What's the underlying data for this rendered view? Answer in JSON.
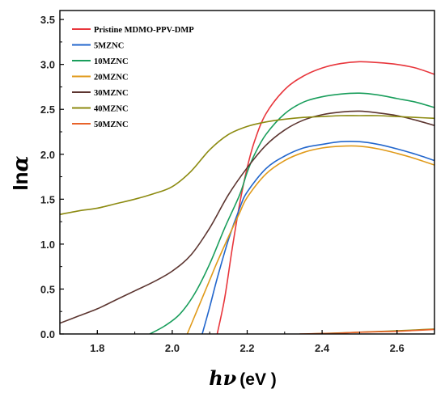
{
  "chart_data": {
    "type": "line",
    "xlabel_symbol": "hν",
    "xlabel_unit": "(eV  )",
    "ylabel_prefix": "In",
    "ylabel_symbol": "α",
    "xlim": [
      1.7,
      2.7
    ],
    "ylim": [
      0.0,
      3.6
    ],
    "xticks": [
      "1.8",
      "2.0",
      "2.2",
      "2.4",
      "2.6"
    ],
    "yticks": [
      "0.0",
      "0.5",
      "1.0",
      "1.5",
      "2.0",
      "2.5",
      "3.0",
      "3.5"
    ],
    "grid": false,
    "legend_position": "top-left",
    "series": [
      {
        "name": "Pristine MDMO-PPV-DMP",
        "color": "#e8363c",
        "x": [
          2.12,
          2.14,
          2.16,
          2.18,
          2.2,
          2.22,
          2.25,
          2.3,
          2.35,
          2.4,
          2.45,
          2.5,
          2.55,
          2.6,
          2.65,
          2.7
        ],
        "y": [
          0.0,
          0.4,
          0.95,
          1.45,
          1.85,
          2.15,
          2.45,
          2.72,
          2.87,
          2.96,
          3.01,
          3.03,
          3.02,
          3.0,
          2.96,
          2.89
        ]
      },
      {
        "name": "5MZNC",
        "color": "#2266cc",
        "x": [
          2.08,
          2.1,
          2.12,
          2.15,
          2.18,
          2.2,
          2.25,
          2.3,
          2.35,
          2.4,
          2.45,
          2.5,
          2.55,
          2.6,
          2.65,
          2.7
        ],
        "y": [
          0.0,
          0.3,
          0.62,
          1.05,
          1.4,
          1.58,
          1.84,
          1.98,
          2.07,
          2.11,
          2.14,
          2.14,
          2.11,
          2.06,
          2.0,
          1.93
        ]
      },
      {
        "name": "10MZNC",
        "color": "#1a9e5c",
        "x": [
          1.94,
          1.98,
          2.02,
          2.06,
          2.1,
          2.14,
          2.18,
          2.2,
          2.22,
          2.25,
          2.3,
          2.35,
          2.4,
          2.45,
          2.5,
          2.55,
          2.6,
          2.65,
          2.7
        ],
        "y": [
          0.0,
          0.09,
          0.22,
          0.45,
          0.78,
          1.18,
          1.55,
          1.8,
          2.0,
          2.22,
          2.45,
          2.58,
          2.64,
          2.67,
          2.68,
          2.66,
          2.62,
          2.58,
          2.52
        ]
      },
      {
        "name": "20MZNC",
        "color": "#e09a1a",
        "x": [
          2.04,
          2.06,
          2.08,
          2.1,
          2.12,
          2.15,
          2.18,
          2.2,
          2.25,
          2.3,
          2.35,
          2.4,
          2.45,
          2.5,
          2.55,
          2.6,
          2.65,
          2.7
        ],
        "y": [
          0.0,
          0.2,
          0.4,
          0.6,
          0.8,
          1.08,
          1.35,
          1.52,
          1.78,
          1.93,
          2.02,
          2.07,
          2.09,
          2.09,
          2.06,
          2.01,
          1.95,
          1.88
        ]
      },
      {
        "name": "30MZNC",
        "color": "#5c3530",
        "x": [
          1.7,
          1.75,
          1.8,
          1.85,
          1.9,
          1.95,
          2.0,
          2.05,
          2.1,
          2.15,
          2.2,
          2.25,
          2.3,
          2.35,
          2.4,
          2.45,
          2.5,
          2.55,
          2.6,
          2.65,
          2.7
        ],
        "y": [
          0.12,
          0.2,
          0.28,
          0.38,
          0.48,
          0.58,
          0.7,
          0.88,
          1.18,
          1.55,
          1.85,
          2.1,
          2.27,
          2.38,
          2.44,
          2.47,
          2.48,
          2.46,
          2.43,
          2.38,
          2.32
        ]
      },
      {
        "name": "40MZNC",
        "color": "#8c8a10",
        "x": [
          1.7,
          1.75,
          1.8,
          1.85,
          1.9,
          1.95,
          2.0,
          2.05,
          2.1,
          2.15,
          2.2,
          2.25,
          2.3,
          2.35,
          2.4,
          2.45,
          2.5,
          2.55,
          2.6,
          2.65,
          2.7
        ],
        "y": [
          1.33,
          1.37,
          1.4,
          1.45,
          1.5,
          1.56,
          1.64,
          1.81,
          2.05,
          2.22,
          2.31,
          2.36,
          2.39,
          2.41,
          2.42,
          2.43,
          2.43,
          2.43,
          2.42,
          2.41,
          2.4
        ]
      },
      {
        "name": "50MZNC",
        "color": "#e8632a",
        "x": [
          2.34,
          2.4,
          2.45,
          2.5,
          2.55,
          2.6,
          2.65,
          2.7
        ],
        "y": [
          0.0,
          0.005,
          0.01,
          0.02,
          0.025,
          0.03,
          0.04,
          0.05
        ]
      }
    ],
    "extra_series_color": "#8c8a10",
    "extra_series": {
      "x": [
        2.36,
        2.4,
        2.45,
        2.5,
        2.55,
        2.6,
        2.65,
        2.7
      ],
      "y": [
        0.0,
        0.005,
        0.012,
        0.02,
        0.028,
        0.035,
        0.045,
        0.055
      ]
    }
  }
}
